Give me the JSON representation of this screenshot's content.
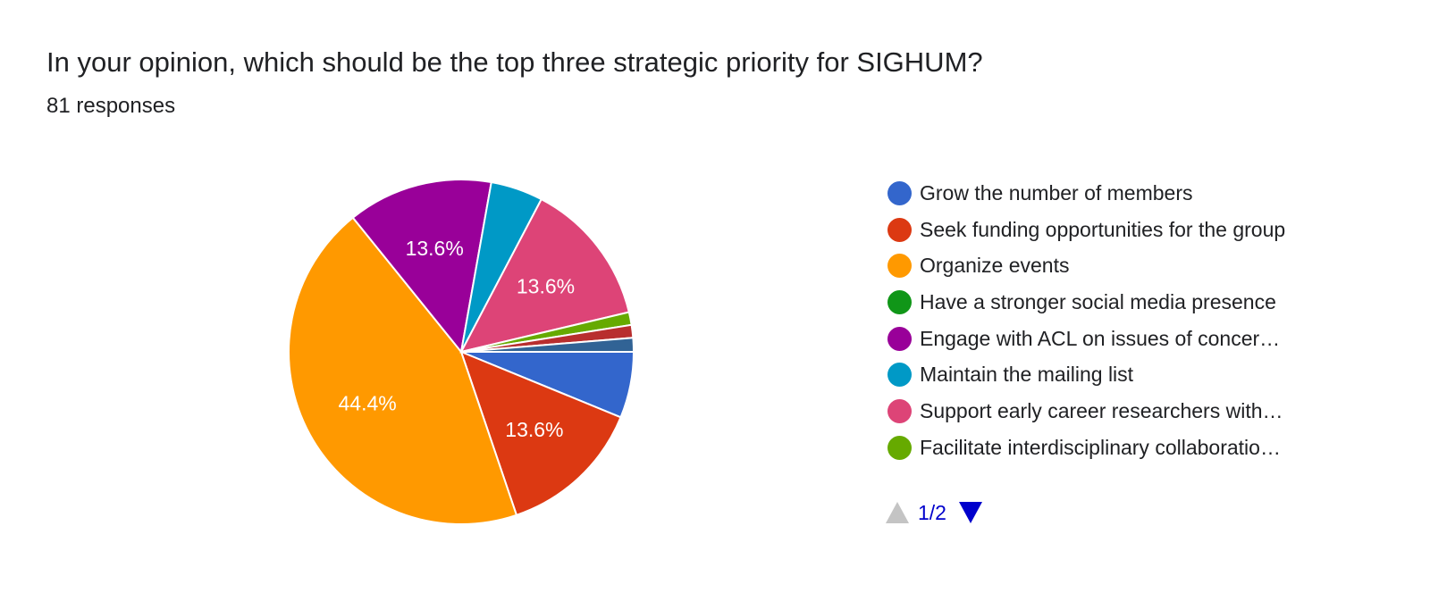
{
  "header": {
    "title": "In your opinion, which should be the top three strategic priority for SIGHUM?",
    "subtitle": "81 responses"
  },
  "chart_data": {
    "type": "pie",
    "title": "In your opinion, which should be the top three strategic priority for SIGHUM?",
    "subtitle": "81 responses",
    "start_angle_deg": 90,
    "direction": "clockwise",
    "legend_position": "right",
    "slices": [
      {
        "name": "Grow the number of members",
        "value": 6.2,
        "label": "",
        "color": "#3366cc"
      },
      {
        "name": "Seek funding opportunities for the group",
        "value": 13.6,
        "label": "13.6%",
        "color": "#dc3912"
      },
      {
        "name": "Organize events",
        "value": 44.4,
        "label": "44.4%",
        "color": "#ff9900"
      },
      {
        "name": "Engage with ACL on issues of concer…",
        "value": 13.6,
        "label": "13.6%",
        "color": "#990099"
      },
      {
        "name": "Maintain the mailing list",
        "value": 4.9,
        "label": "",
        "color": "#0099c6"
      },
      {
        "name": "Support early career researchers with…",
        "value": 13.6,
        "label": "13.6%",
        "color": "#dd4477"
      },
      {
        "name": "Facilitate interdisciplinary collaboratio…",
        "value": 1.2,
        "label": "",
        "color": "#66aa00"
      },
      {
        "name": "",
        "value": 1.2,
        "label": "",
        "color": "#b82e2e"
      },
      {
        "name": "",
        "value": 1.3,
        "label": "",
        "color": "#316395"
      }
    ],
    "legend": [
      {
        "label": "Grow the number of members",
        "color": "#3366cc"
      },
      {
        "label": "Seek funding opportunities for the group",
        "color": "#dc3912"
      },
      {
        "label": "Organize events",
        "color": "#ff9900"
      },
      {
        "label": "Have a stronger social media presence",
        "color": "#109618"
      },
      {
        "label": "Engage with ACL on issues of concer…",
        "color": "#990099"
      },
      {
        "label": "Maintain the mailing list",
        "color": "#0099c6"
      },
      {
        "label": "Support early career researchers with…",
        "color": "#dd4477"
      },
      {
        "label": "Facilitate interdisciplinary collaboratio…",
        "color": "#66aa00"
      }
    ],
    "pager": "1/2"
  }
}
